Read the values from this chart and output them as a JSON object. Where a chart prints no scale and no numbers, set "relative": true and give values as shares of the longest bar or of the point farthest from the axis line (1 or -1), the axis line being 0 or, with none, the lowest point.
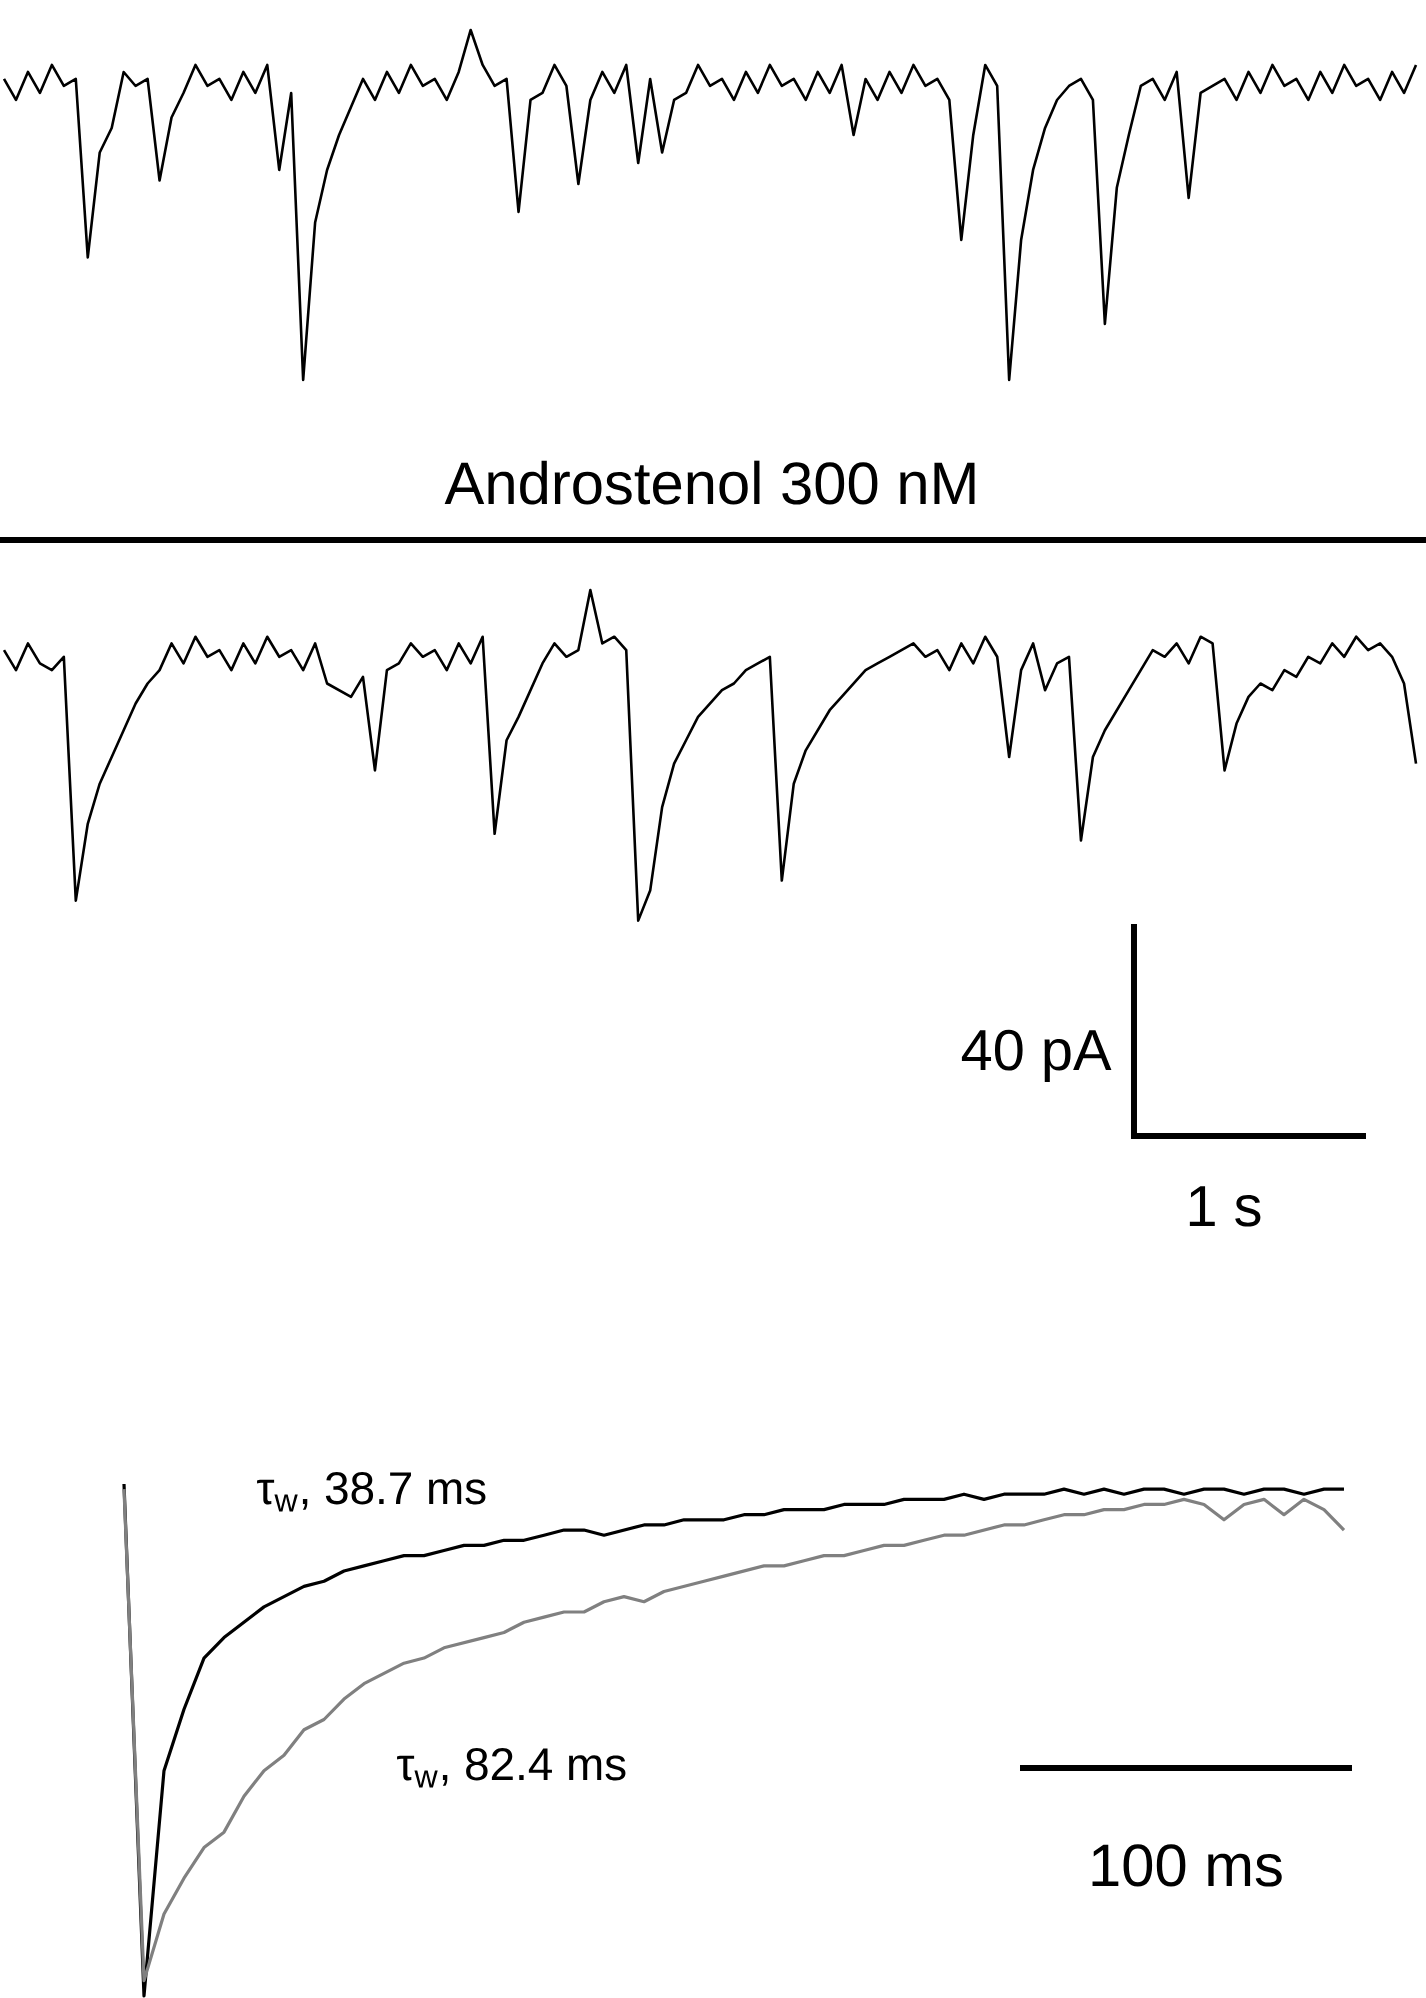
{
  "chart_data": [
    {
      "type": "line",
      "relative": true,
      "color": "#000000",
      "categories": [
        null,
        null,
        null,
        null,
        null,
        null,
        null,
        null,
        null,
        null,
        null,
        null,
        null,
        null,
        null,
        null,
        null,
        null,
        null,
        null,
        null,
        null,
        null,
        null,
        null,
        null,
        null,
        null,
        null,
        null,
        null,
        null,
        null,
        null,
        null,
        null,
        null,
        null,
        null,
        null,
        null,
        null,
        null,
        null,
        null,
        null,
        null,
        null,
        null,
        null,
        null,
        null,
        null,
        null,
        null,
        null,
        null,
        null,
        null,
        null,
        null,
        null,
        null,
        null,
        null,
        null,
        null,
        null,
        null,
        null,
        null,
        null,
        null,
        null,
        null,
        null,
        null,
        null,
        null,
        null,
        null,
        null,
        null,
        null,
        null,
        null,
        null,
        null,
        null,
        null,
        null,
        null,
        null,
        null,
        null,
        null,
        null,
        null,
        null,
        null,
        null,
        null,
        null,
        null,
        null,
        null,
        null,
        null,
        null,
        null,
        null,
        null,
        null,
        null,
        null,
        null,
        null,
        null,
        null
      ],
      "values": [
        0.86,
        0.8,
        0.88,
        0.82,
        0.9,
        0.84,
        0.86,
        0.35,
        0.65,
        0.72,
        0.88,
        0.84,
        0.86,
        0.57,
        0.75,
        0.82,
        0.9,
        0.84,
        0.86,
        0.8,
        0.88,
        0.82,
        0.9,
        0.6,
        0.82,
        0.0,
        0.45,
        0.6,
        0.7,
        0.78,
        0.86,
        0.8,
        0.88,
        0.82,
        0.9,
        0.84,
        0.86,
        0.8,
        0.88,
        1.0,
        0.9,
        0.84,
        0.86,
        0.48,
        0.8,
        0.82,
        0.9,
        0.84,
        0.56,
        0.8,
        0.88,
        0.82,
        0.9,
        0.62,
        0.86,
        0.65,
        0.8,
        0.82,
        0.9,
        0.84,
        0.86,
        0.8,
        0.88,
        0.82,
        0.9,
        0.84,
        0.86,
        0.8,
        0.88,
        0.82,
        0.9,
        0.7,
        0.86,
        0.8,
        0.88,
        0.82,
        0.9,
        0.84,
        0.86,
        0.8,
        0.4,
        0.7,
        0.9,
        0.84,
        0.0,
        0.4,
        0.6,
        0.72,
        0.8,
        0.84,
        0.86,
        0.8,
        0.16,
        0.55,
        0.7,
        0.84,
        0.86,
        0.8,
        0.88,
        0.52,
        0.82,
        0.84,
        0.86,
        0.8,
        0.88,
        0.82,
        0.9,
        0.84,
        0.86,
        0.8,
        0.88,
        0.82,
        0.9,
        0.84,
        0.86,
        0.8,
        0.88,
        0.82,
        0.9
      ]
    },
    {
      "type": "line",
      "relative": true,
      "color": "#000000",
      "title": "Androstenol 300 nM",
      "annotations": [
        "40 pA",
        "1 s"
      ],
      "categories": [
        null,
        null,
        null,
        null,
        null,
        null,
        null,
        null,
        null,
        null,
        null,
        null,
        null,
        null,
        null,
        null,
        null,
        null,
        null,
        null,
        null,
        null,
        null,
        null,
        null,
        null,
        null,
        null,
        null,
        null,
        null,
        null,
        null,
        null,
        null,
        null,
        null,
        null,
        null,
        null,
        null,
        null,
        null,
        null,
        null,
        null,
        null,
        null,
        null,
        null,
        null,
        null,
        null,
        null,
        null,
        null,
        null,
        null,
        null,
        null,
        null,
        null,
        null,
        null,
        null,
        null,
        null,
        null,
        null,
        null,
        null,
        null,
        null,
        null,
        null,
        null,
        null,
        null,
        null,
        null,
        null,
        null,
        null,
        null,
        null,
        null,
        null,
        null,
        null,
        null,
        null,
        null,
        null,
        null,
        null,
        null,
        null,
        null,
        null,
        null,
        null,
        null,
        null,
        null,
        null,
        null,
        null,
        null,
        null,
        null,
        null,
        null,
        null,
        null,
        null,
        null,
        null,
        null,
        null
      ],
      "values": [
        0.82,
        0.76,
        0.84,
        0.78,
        0.76,
        0.8,
        0.07,
        0.3,
        0.42,
        0.5,
        0.58,
        0.66,
        0.72,
        0.76,
        0.84,
        0.78,
        0.86,
        0.8,
        0.82,
        0.76,
        0.84,
        0.78,
        0.86,
        0.8,
        0.82,
        0.76,
        0.84,
        0.72,
        0.7,
        0.68,
        0.74,
        0.46,
        0.76,
        0.78,
        0.84,
        0.8,
        0.82,
        0.76,
        0.84,
        0.78,
        0.86,
        0.27,
        0.55,
        0.62,
        0.7,
        0.78,
        0.84,
        0.8,
        0.82,
        1.0,
        0.84,
        0.86,
        0.82,
        0.01,
        0.1,
        0.35,
        0.48,
        0.55,
        0.62,
        0.66,
        0.7,
        0.72,
        0.76,
        0.78,
        0.8,
        0.13,
        0.42,
        0.52,
        0.58,
        0.64,
        0.68,
        0.72,
        0.76,
        0.78,
        0.8,
        0.82,
        0.84,
        0.8,
        0.82,
        0.76,
        0.84,
        0.78,
        0.86,
        0.8,
        0.5,
        0.76,
        0.84,
        0.7,
        0.78,
        0.8,
        0.25,
        0.5,
        0.58,
        0.64,
        0.7,
        0.76,
        0.82,
        0.8,
        0.84,
        0.78,
        0.86,
        0.84,
        0.46,
        0.6,
        0.68,
        0.72,
        0.7,
        0.76,
        0.74,
        0.8,
        0.78,
        0.84,
        0.8,
        0.86,
        0.82,
        0.84,
        0.8,
        0.72,
        0.48
      ]
    },
    {
      "type": "line",
      "relative": true,
      "annotations": [
        "100 ms"
      ],
      "categories": [
        null,
        null,
        null,
        null,
        null,
        null,
        null,
        null,
        null,
        null,
        null,
        null,
        null,
        null,
        null,
        null,
        null,
        null,
        null,
        null,
        null,
        null,
        null,
        null,
        null,
        null,
        null,
        null,
        null,
        null,
        null,
        null,
        null,
        null,
        null,
        null,
        null,
        null,
        null,
        null,
        null,
        null,
        null,
        null,
        null,
        null,
        null,
        null,
        null,
        null,
        null,
        null,
        null,
        null,
        null,
        null,
        null,
        null,
        null,
        null,
        null,
        null
      ],
      "series": [
        {
          "name": "τ$_{w}$, 38.7 ms",
          "color": "#000000",
          "values": [
            1.0,
            0.0,
            0.44,
            0.56,
            0.66,
            0.7,
            0.73,
            0.76,
            0.78,
            0.8,
            0.81,
            0.83,
            0.84,
            0.85,
            0.86,
            0.86,
            0.87,
            0.88,
            0.88,
            0.89,
            0.89,
            0.9,
            0.91,
            0.91,
            0.9,
            0.91,
            0.92,
            0.92,
            0.93,
            0.93,
            0.93,
            0.94,
            0.94,
            0.95,
            0.95,
            0.95,
            0.96,
            0.96,
            0.96,
            0.97,
            0.97,
            0.97,
            0.98,
            0.97,
            0.98,
            0.98,
            0.98,
            0.99,
            0.98,
            0.99,
            0.98,
            0.99,
            0.99,
            0.98,
            0.99,
            0.99,
            0.98,
            0.99,
            0.99,
            0.98,
            0.99,
            0.99
          ]
        },
        {
          "name": "τ$_{w}$, 82.4 ms",
          "color": "#808080",
          "values": [
            0.99,
            0.03,
            0.16,
            0.23,
            0.29,
            0.32,
            0.39,
            0.44,
            0.47,
            0.52,
            0.54,
            0.58,
            0.61,
            0.63,
            0.65,
            0.66,
            0.68,
            0.69,
            0.7,
            0.71,
            0.73,
            0.74,
            0.75,
            0.75,
            0.77,
            0.78,
            0.77,
            0.79,
            0.8,
            0.81,
            0.82,
            0.83,
            0.84,
            0.84,
            0.85,
            0.86,
            0.86,
            0.87,
            0.88,
            0.88,
            0.89,
            0.9,
            0.9,
            0.91,
            0.92,
            0.92,
            0.93,
            0.94,
            0.94,
            0.95,
            0.95,
            0.96,
            0.96,
            0.97,
            0.96,
            0.93,
            0.96,
            0.97,
            0.94,
            0.97,
            0.95,
            0.91
          ]
        }
      ]
    }
  ]
}
